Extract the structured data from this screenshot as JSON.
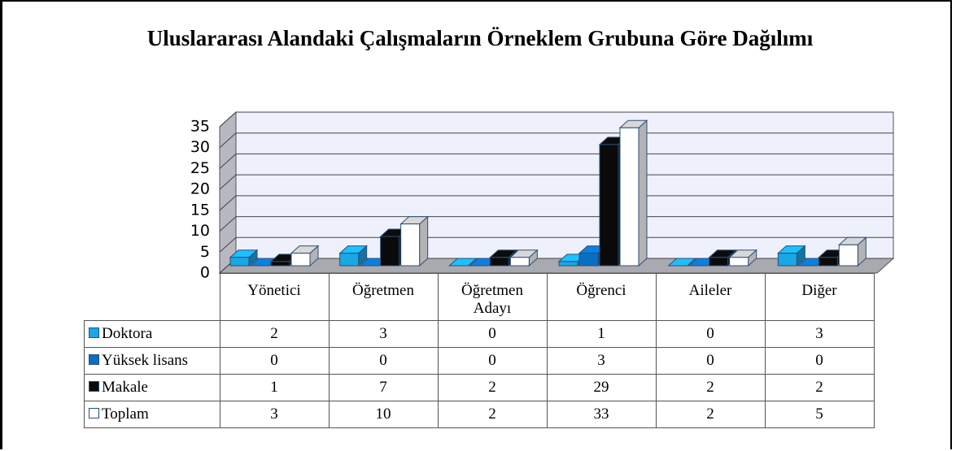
{
  "chart_data": {
    "type": "bar3d",
    "title": "Uluslararası Alandaki Çalışmaların Örneklem Grubuna Göre Dağılımı",
    "categories": [
      "Yönetici",
      "Öğretmen",
      "Öğretmen Adayı",
      "Öğrenci",
      "Aileler",
      "Diğer"
    ],
    "series": [
      {
        "name": "Doktora",
        "color": "#1aa7e6",
        "values": [
          2,
          3,
          0,
          1,
          0,
          3
        ]
      },
      {
        "name": "Yüksek lisans",
        "color": "#0a6fc2",
        "values": [
          0,
          0,
          0,
          3,
          0,
          0
        ]
      },
      {
        "name": "Makale",
        "color": "#0a0a0a",
        "values": [
          1,
          7,
          2,
          29,
          2,
          2
        ]
      },
      {
        "name": "Toplam",
        "color": "#ffffff",
        "values": [
          3,
          10,
          2,
          33,
          2,
          5
        ]
      }
    ],
    "ylim": [
      0,
      35
    ],
    "yticks": [
      0,
      5,
      10,
      15,
      20,
      25,
      30,
      35
    ],
    "grid": true,
    "data_table": true
  }
}
